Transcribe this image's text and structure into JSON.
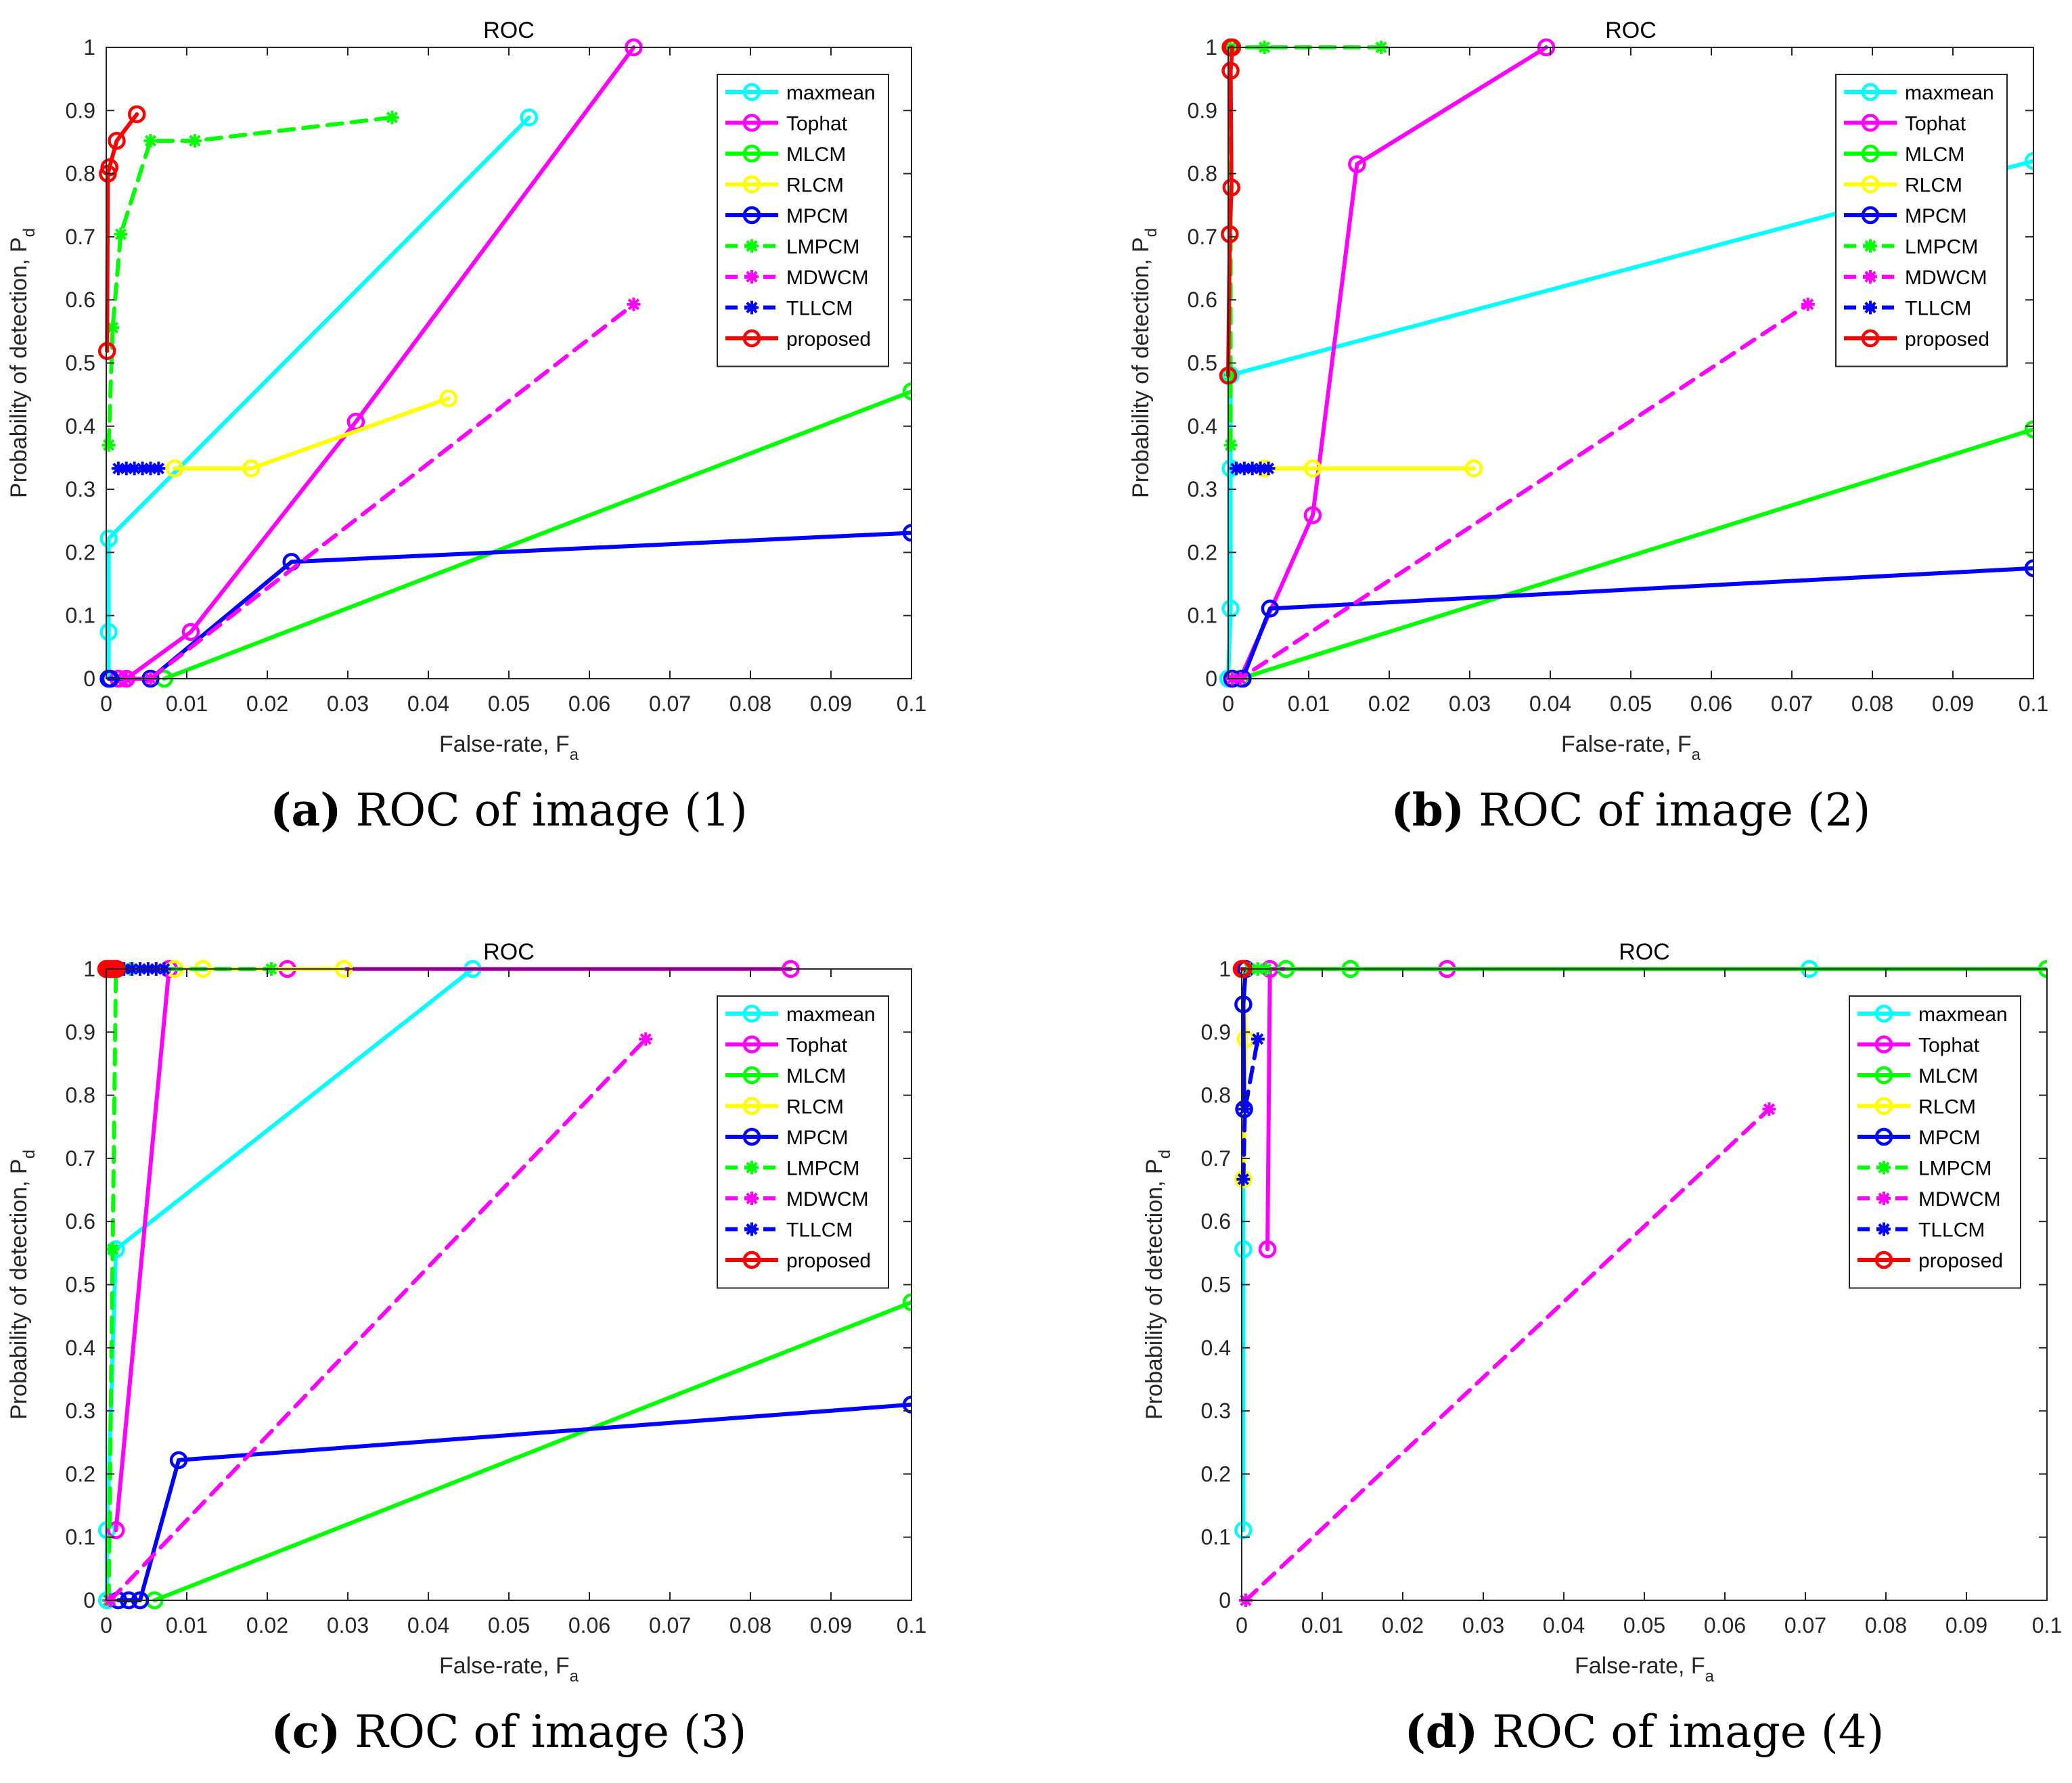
{
  "chart_data": [
    {
      "type": "line",
      "panel": "a",
      "title": "ROC",
      "xlabel": "False-rate, F",
      "xlabel_sub": "a",
      "ylabel": "Probability of detection, P",
      "ylabel_sub": "d",
      "xlim": [
        0,
        0.1
      ],
      "ylim": [
        0,
        1
      ],
      "xticks": [
        "0",
        "0.01",
        "0.02",
        "0.03",
        "0.04",
        "0.05",
        "0.06",
        "0.07",
        "0.08",
        "0.09",
        "0.1"
      ],
      "yticks": [
        "0",
        "0.1",
        "0.2",
        "0.3",
        "0.4",
        "0.5",
        "0.6",
        "0.7",
        "0.8",
        "0.9",
        "1"
      ],
      "caption_letter": "(a)",
      "caption_text": " ROC of image (1)",
      "series": [
        {
          "name": "maxmean",
          "x": [
            0.0003,
            0.0003,
            0.0003,
            0.0003,
            0.0525
          ],
          "y": [
            0,
            0,
            0.074,
            0.222,
            0.889
          ]
        },
        {
          "name": "Tophat",
          "x": [
            0.0015,
            0.0025,
            0.0105,
            0.031,
            0.0655
          ],
          "y": [
            0,
            0,
            0.074,
            0.407,
            1
          ]
        },
        {
          "name": "MLCM",
          "x": [
            0.0072,
            0.1
          ],
          "y": [
            0,
            0.455
          ]
        },
        {
          "name": "RLCM",
          "x": [
            0.0085,
            0.018,
            0.0425
          ],
          "y": [
            0.333,
            0.333,
            0.444
          ]
        },
        {
          "name": "MPCM",
          "x": [
            0.0003,
            0.0005,
            0.0055,
            0.023,
            0.1
          ],
          "y": [
            0,
            0,
            0,
            0.185,
            0.231
          ]
        },
        {
          "name": "LMPCM",
          "x": [
            0.0003,
            0.0008,
            0.0018,
            0.0055,
            0.011,
            0.0355
          ],
          "y": [
            0.37,
            0.556,
            0.704,
            0.852,
            0.852,
            0.889
          ]
        },
        {
          "name": "MDWCM",
          "x": [
            0.0025,
            0.0055,
            0.0655
          ],
          "y": [
            0,
            0,
            0.593
          ]
        },
        {
          "name": "TLLCM",
          "x": [
            0.0015,
            0.0025,
            0.0035,
            0.0045,
            0.0055,
            0.0065
          ],
          "y": [
            0.333,
            0.333,
            0.333,
            0.333,
            0.333,
            0.333
          ]
        },
        {
          "name": "proposed",
          "x": [
            0.0001,
            0.0002,
            0.0004,
            0.0013,
            0.0038
          ],
          "y": [
            0.519,
            0.8,
            0.81,
            0.852,
            0.894
          ]
        }
      ]
    },
    {
      "type": "line",
      "panel": "b",
      "title": "ROC",
      "xlabel": "False-rate, F",
      "xlabel_sub": "a",
      "ylabel": "Probability of detection, P",
      "ylabel_sub": "d",
      "xlim": [
        0,
        0.1
      ],
      "ylim": [
        0,
        1
      ],
      "xticks": [
        "0",
        "0.01",
        "0.02",
        "0.03",
        "0.04",
        "0.05",
        "0.06",
        "0.07",
        "0.08",
        "0.09",
        "0.1"
      ],
      "yticks": [
        "0",
        "0.1",
        "0.2",
        "0.3",
        "0.4",
        "0.5",
        "0.6",
        "0.7",
        "0.8",
        "0.9",
        "1"
      ],
      "caption_letter": "(b)",
      "caption_text": " ROC of image (2)",
      "series": [
        {
          "name": "maxmean",
          "x": [
            0,
            0.0003,
            0.0003,
            0.0003,
            0.1
          ],
          "y": [
            0,
            0.111,
            0.333,
            0.481,
            0.82
          ]
        },
        {
          "name": "Tophat",
          "x": [
            0.0005,
            0.0015,
            0.0105,
            0.016,
            0.0395
          ],
          "y": [
            0,
            0,
            0.259,
            0.815,
            1
          ]
        },
        {
          "name": "MLCM",
          "x": [
            0.0015,
            0.1
          ],
          "y": [
            0,
            0.395
          ]
        },
        {
          "name": "RLCM",
          "x": [
            0.0045,
            0.0105,
            0.0305
          ],
          "y": [
            0.333,
            0.333,
            0.333
          ]
        },
        {
          "name": "MPCM",
          "x": [
            0.0005,
            0.0018,
            0.0052,
            0.1
          ],
          "y": [
            0,
            0,
            0.111,
            0.175
          ]
        },
        {
          "name": "LMPCM",
          "x": [
            0.0003,
            0.0003,
            0.0003,
            0.0045,
            0.019
          ],
          "y": [
            0.37,
            0.481,
            1,
            1,
            1
          ]
        },
        {
          "name": "MDWCM",
          "x": [
            0.0005,
            0.0015,
            0.072
          ],
          "y": [
            0,
            0,
            0.593
          ]
        },
        {
          "name": "TLLCM",
          "x": [
            0.001,
            0.002,
            0.003,
            0.004,
            0.005
          ],
          "y": [
            0.333,
            0.333,
            0.333,
            0.333,
            0.333
          ]
        },
        {
          "name": "proposed",
          "x": [
            0,
            0.0002,
            0.0004,
            0.0003,
            0.0005,
            0.0003
          ],
          "y": [
            0.48,
            0.704,
            0.778,
            0.963,
            1,
            1
          ]
        }
      ]
    },
    {
      "type": "line",
      "panel": "c",
      "title": "ROC",
      "xlabel": "False-rate, F",
      "xlabel_sub": "a",
      "ylabel": "Probability of detection, P",
      "ylabel_sub": "d",
      "xlim": [
        0,
        0.1
      ],
      "ylim": [
        0,
        1
      ],
      "xticks": [
        "0",
        "0.01",
        "0.02",
        "0.03",
        "0.04",
        "0.05",
        "0.06",
        "0.07",
        "0.08",
        "0.09",
        "0.1"
      ],
      "yticks": [
        "0",
        "0.1",
        "0.2",
        "0.3",
        "0.4",
        "0.5",
        "0.6",
        "0.7",
        "0.8",
        "0.9",
        "1"
      ],
      "caption_letter": "(c)",
      "caption_text": " ROC of image (3)",
      "series": [
        {
          "name": "maxmean",
          "x": [
            0.0001,
            0.0001,
            0.0012,
            0.0455
          ],
          "y": [
            0,
            0.111,
            0.556,
            1
          ]
        },
        {
          "name": "Tophat",
          "x": [
            0.0012,
            0.0078,
            0.0225,
            0.085
          ],
          "y": [
            0.111,
            1,
            1,
            1
          ]
        },
        {
          "name": "MLCM",
          "x": [
            0.006,
            0.1
          ],
          "y": [
            0,
            0.472
          ]
        },
        {
          "name": "RLCM",
          "x": [
            0.0012,
            0.0085,
            0.012,
            0.0295
          ],
          "y": [
            1,
            1,
            1,
            1
          ]
        },
        {
          "name": "MPCM",
          "x": [
            0.0015,
            0.0028,
            0.0042,
            0.009,
            0.1
          ],
          "y": [
            0,
            0,
            0,
            0.222,
            0.31
          ]
        },
        {
          "name": "LMPCM",
          "x": [
            0.0003,
            0.0008,
            0.0012,
            0.003,
            0.0205
          ],
          "y": [
            0,
            0.556,
            1,
            1,
            1
          ]
        },
        {
          "name": "MDWCM",
          "x": [
            0.0005,
            0.067
          ],
          "y": [
            0,
            0.889
          ]
        },
        {
          "name": "TLLCM",
          "x": [
            0.0012,
            0.0022,
            0.0032,
            0.0042,
            0.0052,
            0.0062,
            0.0072
          ],
          "y": [
            1,
            1,
            1,
            1,
            1,
            1,
            1
          ]
        },
        {
          "name": "proposed",
          "x": [
            0,
            0.0002,
            0.0004,
            0.0006,
            0.0008,
            0.001,
            0.0013
          ],
          "y": [
            1,
            1,
            1,
            1,
            1,
            1,
            1
          ]
        }
      ]
    },
    {
      "type": "line",
      "panel": "d",
      "title": "ROC",
      "xlabel": "False-rate, F",
      "xlabel_sub": "a",
      "ylabel": "Probability of detection, P",
      "ylabel_sub": "d",
      "xlim": [
        0,
        0.1
      ],
      "ylim": [
        0,
        1
      ],
      "xticks": [
        "0",
        "0.01",
        "0.02",
        "0.03",
        "0.04",
        "0.05",
        "0.06",
        "0.07",
        "0.08",
        "0.09",
        "0.1"
      ],
      "yticks": [
        "0",
        "0.1",
        "0.2",
        "0.3",
        "0.4",
        "0.5",
        "0.6",
        "0.7",
        "0.8",
        "0.9",
        "1"
      ],
      "caption_letter": "(d)",
      "caption_text": " ROC of image (4)",
      "series": [
        {
          "name": "maxmean",
          "x": [
            0.0002,
            0.0002,
            0.0002,
            0.0705
          ],
          "y": [
            0.111,
            0.556,
            1,
            1
          ]
        },
        {
          "name": "Tophat",
          "x": [
            0.0032,
            0.0035,
            0.0255
          ],
          "y": [
            0.556,
            1,
            1
          ]
        },
        {
          "name": "MLCM",
          "x": [
            0.0055,
            0.0135,
            0.1
          ],
          "y": [
            1,
            1,
            1
          ]
        },
        {
          "name": "RLCM",
          "x": [
            0.0002,
            0.0005,
            0.0002
          ],
          "y": [
            0.667,
            0.889,
            1
          ]
        },
        {
          "name": "MPCM",
          "x": [
            0.0003,
            0.0002,
            0.0005
          ],
          "y": [
            0.778,
            0.944,
            1
          ]
        },
        {
          "name": "LMPCM",
          "x": [
            0.001,
            0.002,
            0.003
          ],
          "y": [
            1,
            1,
            1
          ]
        },
        {
          "name": "MDWCM",
          "x": [
            0.0005,
            0.0655
          ],
          "y": [
            0,
            0.778
          ]
        },
        {
          "name": "TLLCM",
          "x": [
            0.0002,
            0.0004,
            0.002
          ],
          "y": [
            0.667,
            0.778,
            0.889
          ]
        },
        {
          "name": "proposed",
          "x": [
            0,
            0.0002
          ],
          "y": [
            1,
            1
          ]
        }
      ]
    }
  ],
  "legend_entries": [
    {
      "name": "maxmean",
      "color": "#00ffff",
      "style": "solid",
      "marker": "circle"
    },
    {
      "name": "Tophat",
      "color": "#ff00ff",
      "style": "solid",
      "marker": "circle"
    },
    {
      "name": "MLCM",
      "color": "#00ff00",
      "style": "solid",
      "marker": "circle"
    },
    {
      "name": "RLCM",
      "color": "#ffff00",
      "style": "solid",
      "marker": "circle"
    },
    {
      "name": "MPCM",
      "color": "#0000ff",
      "style": "solid",
      "marker": "circle"
    },
    {
      "name": "LMPCM",
      "color": "#00ff00",
      "style": "dashed",
      "marker": "star"
    },
    {
      "name": "MDWCM",
      "color": "#ff00ff",
      "style": "dashed",
      "marker": "star"
    },
    {
      "name": "TLLCM",
      "color": "#0000ff",
      "style": "dashed",
      "marker": "star"
    },
    {
      "name": "proposed",
      "color": "#ff0000",
      "style": "solid",
      "marker": "circle"
    }
  ]
}
